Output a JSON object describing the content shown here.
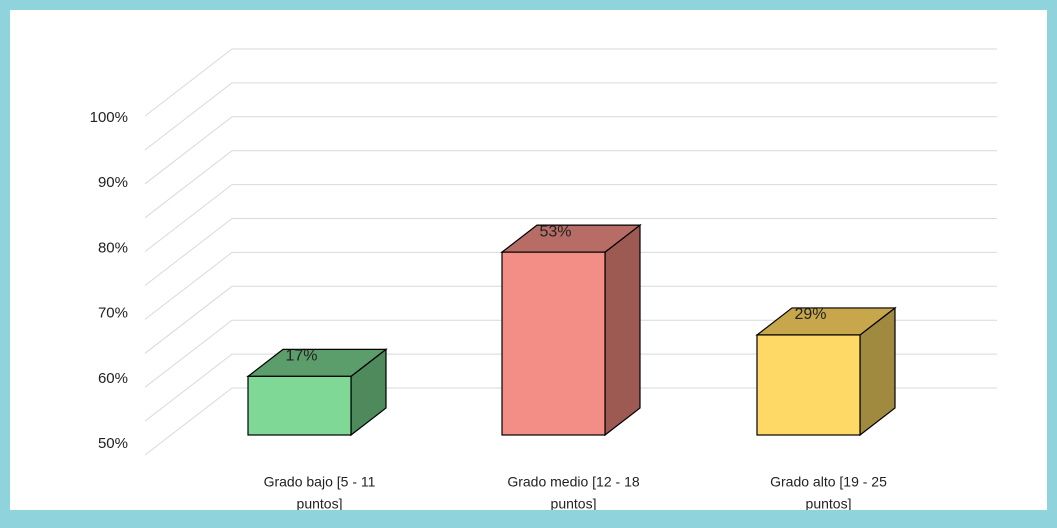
{
  "chart_data": {
    "type": "bar3d",
    "categories": [
      [
        "Grado  bajo  [5  -  11",
        "puntos]"
      ],
      [
        "Grado medio [12 - 18",
        "puntos]"
      ],
      [
        "Grado alto [19 - 25",
        "puntos]"
      ]
    ],
    "values": [
      17,
      53,
      29
    ],
    "value_labels": [
      "17%",
      "53%",
      "29%"
    ],
    "colors": [
      {
        "front": "#7fd896",
        "side": "#4e8a5c",
        "top": "#5c9e6b"
      },
      {
        "front": "#f28e85",
        "side": "#9c5a52",
        "top": "#b76d66"
      },
      {
        "front": "#ffd966",
        "side": "#a08a40",
        "top": "#c7a64c"
      }
    ],
    "y_axis_labels": [
      "100%",
      "90%",
      "80%",
      "70%",
      "60%",
      "50%"
    ],
    "ylim": [
      0,
      100
    ],
    "gridlines": [
      0,
      10,
      20,
      30,
      40,
      50,
      60,
      70,
      80,
      90,
      100
    ]
  }
}
